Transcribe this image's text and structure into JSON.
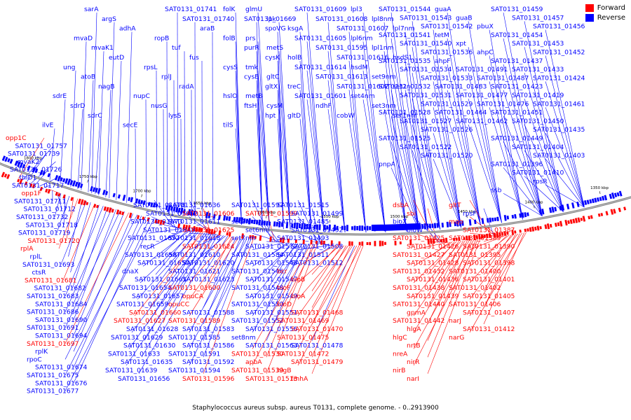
{
  "legend": {
    "forward": {
      "label": "Forward",
      "color": "#ff0000"
    },
    "reverse": {
      "label": "Reverse",
      "color": "#0000ff"
    }
  },
  "caption": "Staphylococcus aureus subsp. aureus T0131, complete genome. - 0..2913900",
  "ruler": [
    "1800 kbp",
    "1750 kbp",
    "1700 kbp",
    "1650 kbp",
    "1600 kbp",
    "1550 kbp",
    "1500 kbp",
    "1450 kbp",
    "1400 kbp",
    "1350 kbp"
  ],
  "upper_labels": [
    "sarA",
    "argS",
    "adhA",
    "mvaD",
    "mvaK1",
    "eutD",
    "ung",
    "atoB",
    "nagB",
    "sdrE",
    "sdrD",
    "sdrC",
    "ilvE",
    "SAT0131_01741",
    "SAT0131_01740",
    "araB",
    "ropB",
    "tuf",
    "fus",
    "rpsL",
    "rplJ",
    "radA",
    "nupC",
    "nusG",
    "lysS",
    "secE",
    "folK",
    "SAT0131_01669",
    "spoVG",
    "folB",
    "purR",
    "cysK",
    "cysS",
    "cysE",
    "gltX",
    "hslO",
    "ftsH",
    "hpt",
    "tilS",
    "glmU",
    "ipk",
    "ksgA",
    "prs",
    "metS",
    "holB",
    "tmk",
    "gltC",
    "treC",
    "metB",
    "cysM",
    "gltD",
    "SAT0131_01609",
    "SAT0131_01608",
    "SAT0131_01607",
    "SAT0131_01605",
    "SAT0131_01595",
    "SAT0131_01616",
    "SAT0131_01614",
    "SAT0131_01613",
    "SAT0131_01602",
    "SAT0131_01601",
    "ndhF",
    "cobW",
    "lpl3",
    "lpl8nm",
    "lpl7nm",
    "lpl6nm",
    "lpl1nm",
    "hsdS1",
    "hsdM",
    "set9nm",
    "set2n",
    "set4nm",
    "set3nm",
    "set1nm",
    "SAT0131_01544",
    "SAT0131_01543",
    "SAT0131_01542",
    "SAT0131_01541",
    "SAT0131_01540",
    "SAT0131_01536",
    "SAT0131_01535",
    "SAT0131_01534",
    "SAT0131_01533",
    "SAT0131_01532",
    "SAT0131_01531",
    "SAT0131_01529",
    "SAT0131_01528",
    "SAT0131_01527",
    "SAT0131_01526",
    "SAT0131_01525",
    "SAT0131_01522",
    "SAT0131_01520",
    "pnpA",
    "guaA",
    "guaB",
    "pbuX",
    "tetM",
    "xpt",
    "ahpC",
    "ahpF",
    "SAT0131_01491",
    "SAT0131_01487",
    "SAT0131_01483",
    "SAT0131_01477",
    "SAT0131_01476",
    "SAT0131_01464",
    "SAT0131_01462",
    "SAT0131_01459",
    "SAT0131_01457",
    "SAT0131_01456",
    "SAT0131_01454",
    "SAT0131_01453",
    "SAT0131_01452",
    "SAT0131_01437",
    "SAT0131_01433",
    "SAT0131_01424",
    "SAT0131_01423",
    "SAT0131_01419",
    "SAT0131_01461",
    "SAT0131_01451",
    "SAT0131_01450",
    "SAT0131_01435",
    "SAT0131_01449",
    "SAT0131_01404",
    "SAT0131_01403",
    "SAT0131_01396",
    "SAT0131_01410",
    "rpsR",
    "ssb"
  ],
  "left_labels": [
    {
      "t": "opp1C",
      "f": true
    },
    {
      "t": "SAT0131_01757",
      "f": false
    },
    {
      "t": "SAT0131_01739",
      "f": false
    },
    {
      "t": "mvaK2",
      "f": false
    },
    {
      "t": "SAT0131_01726",
      "f": false
    },
    {
      "t": "thiD1",
      "f": false
    },
    {
      "t": "SAT0131_01717",
      "f": false
    },
    {
      "t": "opp1F",
      "f": true
    },
    {
      "t": "SAT0131_01711",
      "f": false
    },
    {
      "t": "SAT0131_01712",
      "f": false
    },
    {
      "t": "SAT0131_01732",
      "f": false
    },
    {
      "t": "SAT0131_01718",
      "f": false
    },
    {
      "t": "SAT0131_01719",
      "f": false
    },
    {
      "t": "SAT0131_01720",
      "f": true
    },
    {
      "t": "rplA",
      "f": true
    },
    {
      "t": "rplL",
      "f": false
    },
    {
      "t": "SAT0131_01693",
      "f": false
    },
    {
      "t": "ctsR",
      "f": false
    },
    {
      "t": "SAT0131_01681",
      "f": true
    },
    {
      "t": "SAT0131_01682",
      "f": false
    },
    {
      "t": "SAT0131_01683",
      "f": false
    },
    {
      "t": "SAT0131_01684",
      "f": false
    },
    {
      "t": "SAT0131_01686",
      "f": false
    },
    {
      "t": "SAT0131_01690",
      "f": false
    },
    {
      "t": "SAT0131_01691",
      "f": false
    },
    {
      "t": "SAT0131_01694",
      "f": false
    },
    {
      "t": "SAT0131_01697",
      "f": true
    },
    {
      "t": "rplK",
      "f": false
    },
    {
      "t": "rpoC",
      "f": false
    },
    {
      "t": "SAT0131_01674",
      "f": false
    },
    {
      "t": "SAT0131_01675",
      "f": false
    },
    {
      "t": "SAT0131_01676",
      "f": false
    },
    {
      "t": "SAT0131_01677",
      "f": false
    }
  ],
  "lower_labels": [
    {
      "t": "SAT0131_01678",
      "f": false
    },
    {
      "t": "SAT0131_01662",
      "f": false
    },
    {
      "t": "SAT0131_01673",
      "f": false
    },
    {
      "t": "SAT0131_01648",
      "f": false
    },
    {
      "t": "SAT0131_01652",
      "f": false
    },
    {
      "t": "recR",
      "f": false
    },
    {
      "t": "SAT0131_01658",
      "f": false
    },
    {
      "t": "SAT0131_01650",
      "f": false
    },
    {
      "t": "dnaX",
      "f": false
    },
    {
      "t": "SAT0131_01661",
      "f": false
    },
    {
      "t": "SAT0131_01654",
      "f": false
    },
    {
      "t": "SAT0131_01657",
      "f": false
    },
    {
      "t": "SAT0131_01659",
      "f": false
    },
    {
      "t": "SAT0131_01660",
      "f": true
    },
    {
      "t": "SAT0131_01627",
      "f": true
    },
    {
      "t": "SAT0131_01628",
      "f": false
    },
    {
      "t": "SAT0131_01629",
      "f": false
    },
    {
      "t": "SAT0131_01630",
      "f": false
    },
    {
      "t": "SAT0131_01633",
      "f": false
    },
    {
      "t": "SAT0131_01635",
      "f": false
    },
    {
      "t": "SAT0131_01639",
      "f": false
    },
    {
      "t": "SAT0131_01656",
      "f": false
    },
    {
      "t": "SAT0131_01636",
      "f": false
    },
    {
      "t": "SAT0131_01606",
      "f": true
    },
    {
      "t": "SAT0131_01611",
      "f": false
    },
    {
      "t": "SAT0131_01625",
      "f": true
    },
    {
      "t": "SAT0131_01618",
      "f": false
    },
    {
      "t": "SAT0131_01624",
      "f": true
    },
    {
      "t": "SAT0131_01610",
      "f": false
    },
    {
      "t": "SAT0131_01620",
      "f": false
    },
    {
      "t": "SAT0131_01621",
      "f": false
    },
    {
      "t": "SAT0131_01623",
      "f": false
    },
    {
      "t": "SAT0131_01600",
      "f": true
    },
    {
      "t": "opuCA",
      "f": true
    },
    {
      "t": "opuCC",
      "f": true
    },
    {
      "t": "SAT0131_01588",
      "f": false
    },
    {
      "t": "SAT0131_01589",
      "f": true
    },
    {
      "t": "SAT0131_01583",
      "f": false
    },
    {
      "t": "SAT0131_01585",
      "f": false
    },
    {
      "t": "SAT0131_01586",
      "f": false
    },
    {
      "t": "SAT0131_01591",
      "f": false
    },
    {
      "t": "SAT0131_01592",
      "f": false
    },
    {
      "t": "SAT0131_01594",
      "f": false
    },
    {
      "t": "SAT0131_01596",
      "f": true
    },
    {
      "t": "SAT0131_01597",
      "f": false
    },
    {
      "t": "SAT0131_01599",
      "f": true
    },
    {
      "t": "set2nm",
      "f": false
    },
    {
      "t": "set6nm",
      "f": false
    },
    {
      "t": "set7nm",
      "f": false
    },
    {
      "t": "SAT0131_01572",
      "f": false
    },
    {
      "t": "SAT0131_01584",
      "f": false
    },
    {
      "t": "SAT0131_01545",
      "f": false
    },
    {
      "t": "SAT0131_01546",
      "f": false
    },
    {
      "t": "SAT0131_01547",
      "f": false
    },
    {
      "t": "SAT0131_01548",
      "f": false
    },
    {
      "t": "SAT0131_01549",
      "f": false
    },
    {
      "t": "SAT0131_01550",
      "f": false
    },
    {
      "t": "SAT0131_01551",
      "f": false
    },
    {
      "t": "SAT0131_01552",
      "f": false
    },
    {
      "t": "SAT0131_01556",
      "f": false
    },
    {
      "t": "set8nm",
      "f": false
    },
    {
      "t": "SAT0131_01563",
      "f": false
    },
    {
      "t": "SAT0131_01530",
      "f": true
    },
    {
      "t": "apbA",
      "f": true
    },
    {
      "t": "SAT0131_01539",
      "f": true
    },
    {
      "t": "SAT0131_01513",
      "f": true
    },
    {
      "t": "SAT0131_01515",
      "f": false
    },
    {
      "t": "SAT0131_01499",
      "f": false
    },
    {
      "t": "SAT0131_01485",
      "f": false
    },
    {
      "t": "SAT0131_01492",
      "f": false
    },
    {
      "t": "SAT0131_01493",
      "f": false
    },
    {
      "t": "SAT0131_01508",
      "f": false
    },
    {
      "t": "SAT0131_01511",
      "f": false
    },
    {
      "t": "SAT0131_01512",
      "f": false
    },
    {
      "t": "bcr",
      "f": true
    },
    {
      "t": "bioB",
      "f": true
    },
    {
      "t": "bioF",
      "f": true
    },
    {
      "t": "bioA",
      "f": true
    },
    {
      "t": "bioD",
      "f": true
    },
    {
      "t": "SAT0131_01468",
      "f": true
    },
    {
      "t": "SAT0131_01469",
      "f": true
    },
    {
      "t": "SAT0131_01470",
      "f": true
    },
    {
      "t": "SAT0131_01475",
      "f": true
    },
    {
      "t": "SAT0131_01478",
      "f": false
    },
    {
      "t": "SAT0131_01472",
      "f": true
    },
    {
      "t": "SAT0131_01479",
      "f": true
    },
    {
      "t": "hlgB",
      "f": true
    },
    {
      "t": "fmhA",
      "f": true
    },
    {
      "t": "dsbA",
      "f": true
    },
    {
      "t": "sbi",
      "f": true
    },
    {
      "t": "bioX",
      "f": false
    },
    {
      "t": "bioW",
      "f": false
    },
    {
      "t": "SAT0131_01425",
      "f": true
    },
    {
      "t": "SAT0131_01426",
      "f": true
    },
    {
      "t": "SAT0131_01427",
      "f": true
    },
    {
      "t": "SAT0131_01428",
      "f": true
    },
    {
      "t": "SAT0131_01432",
      "f": true
    },
    {
      "t": "SAT0131_01436",
      "f": true
    },
    {
      "t": "SAT0131_01438",
      "f": true
    },
    {
      "t": "SAT0131_01439",
      "f": true
    },
    {
      "t": "SAT0131_01440",
      "f": true
    },
    {
      "t": "gpmA",
      "f": true
    },
    {
      "t": "SAT0131_01442",
      "f": true
    },
    {
      "t": "hlgA",
      "f": true
    },
    {
      "t": "hlgC",
      "f": true
    },
    {
      "t": "nrtB",
      "f": true
    },
    {
      "t": "nreA",
      "f": true
    },
    {
      "t": "nirR",
      "f": true
    },
    {
      "t": "nirB",
      "f": true
    },
    {
      "t": "narI",
      "f": true
    },
    {
      "t": "gltT",
      "f": true
    },
    {
      "t": "rpsF",
      "f": false
    },
    {
      "t": "mqo",
      "f": true
    },
    {
      "t": "SAT0131_01387",
      "f": true
    },
    {
      "t": "SAT0131_01389",
      "f": true
    },
    {
      "t": "SAT0131_01390",
      "f": true
    },
    {
      "t": "SAT0131_01395",
      "f": true
    },
    {
      "t": "SAT0131_01398",
      "f": true
    },
    {
      "t": "SAT0131_01400",
      "f": true
    },
    {
      "t": "SAT0131_01401",
      "f": true
    },
    {
      "t": "SAT0131_01402",
      "f": true
    },
    {
      "t": "SAT0131_01405",
      "f": true
    },
    {
      "t": "SAT0131_01406",
      "f": true
    },
    {
      "t": "SAT0131_01407",
      "f": true
    },
    {
      "t": "narJ",
      "f": true
    },
    {
      "t": "SAT0131_01412",
      "f": true
    },
    {
      "t": "narG",
      "f": true
    }
  ]
}
